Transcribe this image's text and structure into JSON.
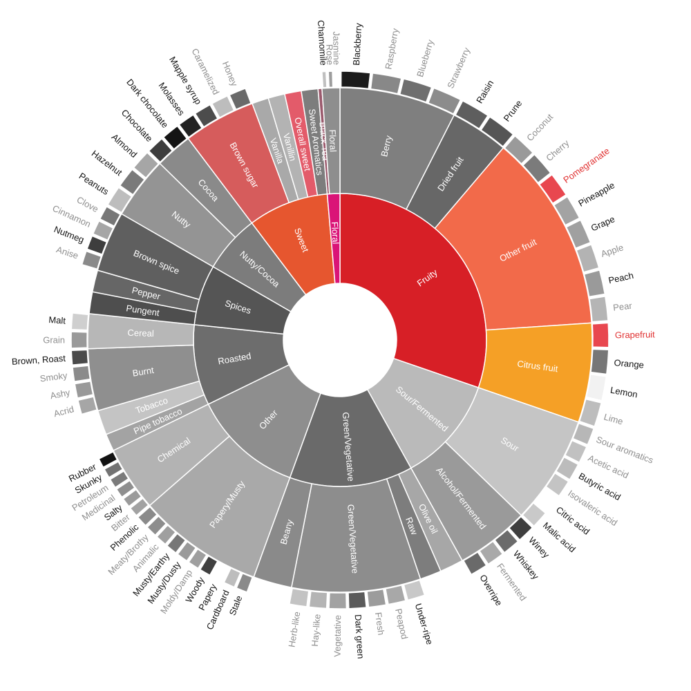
{
  "colors": {
    "fruity": "#d71f26",
    "floral": "#da1477",
    "sweet": "#e6562f",
    "other_fruit": "#f26a4a",
    "citrus": "#f5a026",
    "brown_sugar": "#d65c5c",
    "overall_sweet": "#e35b6a",
    "black_tea": "#9b5a6d",
    "red_text": "#e03131",
    "dark_text": "#111111",
    "muted_text": "#8e8e8e",
    "gray_mid": "#8a8a8a",
    "gray_dark": "#555555",
    "gray_darker": "#3a3a3a",
    "gray_light": "#b8b8b8",
    "gray_lighter": "#c8c8c8",
    "white": "#ffffff"
  },
  "wheel": {
    "categories": [
      {
        "name": "Fruity",
        "color": "#d71f26",
        "label_color": "#ffffff",
        "children": [
          {
            "name": "Berry",
            "color": "#7f7f7f",
            "children": [
              {
                "name": "Blackberry",
                "color": "#1c1c1c",
                "text": "dark"
              },
              {
                "name": "Raspberry",
                "color": "#888888",
                "text": "muted"
              },
              {
                "name": "Blueberry",
                "color": "#6f6f6f",
                "text": "muted"
              },
              {
                "name": "Strawberry",
                "color": "#8c8c8c",
                "text": "muted"
              }
            ]
          },
          {
            "name": "Dried fruit",
            "color": "#676767",
            "children": [
              {
                "name": "Raisin",
                "color": "#5e5e5e",
                "text": "dark"
              },
              {
                "name": "Prune",
                "color": "#555555",
                "text": "dark"
              }
            ]
          },
          {
            "name": "Other fruit",
            "color": "#f26a4a",
            "children": [
              {
                "name": "Coconut",
                "color": "#9a9a9a",
                "text": "muted"
              },
              {
                "name": "Cherry",
                "color": "#7b7b7b",
                "text": "muted"
              },
              {
                "name": "Pomegranate",
                "color": "#e8474f",
                "text": "red"
              },
              {
                "name": "Pineapple",
                "color": "#a3a3a3",
                "text": "dark"
              },
              {
                "name": "Grape",
                "color": "#a0a0a0",
                "text": "dark"
              },
              {
                "name": "Apple",
                "color": "#b3b3b3",
                "text": "muted"
              },
              {
                "name": "Peach",
                "color": "#9a9a9a",
                "text": "dark"
              },
              {
                "name": "Pear",
                "color": "#b5b5b5",
                "text": "muted"
              }
            ]
          },
          {
            "name": "Citrus fruit",
            "color": "#f5a026",
            "children": [
              {
                "name": "Grapefruit",
                "color": "#e8474f",
                "text": "red"
              },
              {
                "name": "Orange",
                "color": "#777777",
                "text": "dark"
              },
              {
                "name": "Lemon",
                "color": "#f2f2f2",
                "text": "dark"
              },
              {
                "name": "Lime",
                "color": "#bdbdbd",
                "text": "muted"
              }
            ]
          }
        ]
      },
      {
        "name": "Sour/Fermented",
        "color": "#bababa",
        "label_color": "#ffffff",
        "children": [
          {
            "name": "Sour",
            "color": "#c5c5c5",
            "children": [
              {
                "name": "Sour aromatics",
                "color": "#b7b7b7",
                "text": "muted"
              },
              {
                "name": "Acetic acid",
                "color": "#c1c1c1",
                "text": "muted"
              },
              {
                "name": "Butyric acid",
                "color": "#bcbcbc",
                "text": "dark"
              },
              {
                "name": "Isovaleric acid",
                "color": "#c4c4c4",
                "text": "muted"
              },
              {
                "name": "Citric acid",
                "color": "#ffffff",
                "text": "dark"
              },
              {
                "name": "Malic acid",
                "color": "#c9c9c9",
                "text": "dark"
              }
            ]
          },
          {
            "name": "Alcohol/Fermented",
            "color": "#9a9a9a",
            "children": [
              {
                "name": "Winey",
                "color": "#3f3f3f",
                "text": "dark"
              },
              {
                "name": "Whiskey",
                "color": "#6b6b6b",
                "text": "dark"
              },
              {
                "name": "Fermented",
                "color": "#a9a9a9",
                "text": "muted"
              },
              {
                "name": "Overripe",
                "color": "#6a6a6a",
                "text": "dark"
              }
            ]
          }
        ]
      },
      {
        "name": "Green/Vegetative",
        "color": "#6a6a6a",
        "label_color": "#ffffff",
        "children": [
          {
            "name": "Olive oil",
            "color": "#a7a7a7",
            "children": []
          },
          {
            "name": "Raw",
            "color": "#7d7d7d",
            "children": []
          },
          {
            "name": "Green/Vegetative",
            "color": "#8d8d8d",
            "children": [
              {
                "name": "Under-ripe",
                "color": "#c8c8c8",
                "text": "dark"
              },
              {
                "name": "Peapod",
                "color": "#a8a8a8",
                "text": "muted"
              },
              {
                "name": "Fresh",
                "color": "#9c9c9c",
                "text": "muted"
              },
              {
                "name": "Dark green",
                "color": "#5a5a5a",
                "text": "dark"
              },
              {
                "name": "Vegetative",
                "color": "#a2a2a2",
                "text": "muted"
              },
              {
                "name": "Hay-like",
                "color": "#b4b4b4",
                "text": "muted"
              },
              {
                "name": "Herb-like",
                "color": "#c3c3c3",
                "text": "muted"
              }
            ]
          },
          {
            "name": "Beany",
            "color": "#8a8a8a",
            "children": []
          }
        ]
      },
      {
        "name": "Other",
        "color": "#8e8e8e",
        "label_color": "#ffffff",
        "children": [
          {
            "name": "Papery/Musty",
            "color": "#a9a9a9",
            "children": [
              {
                "name": "Stale",
                "color": "#8a8a8a",
                "text": "dark"
              },
              {
                "name": "Cardboard",
                "color": "#bdbdbd",
                "text": "dark"
              },
              {
                "name": "Papery",
                "color": "#ffffff",
                "text": "dark"
              },
              {
                "name": "Woody",
                "color": "#404040",
                "text": "dark"
              },
              {
                "name": "Moldy/Damp",
                "color": "#9f9f9f",
                "text": "muted"
              },
              {
                "name": "Musty/Dusty",
                "color": "#9a9a9a",
                "text": "dark"
              },
              {
                "name": "Musty/Earthy",
                "color": "#777777",
                "text": "dark"
              },
              {
                "name": "Animalic",
                "color": "#9f9f9f",
                "text": "muted"
              },
              {
                "name": "Meaty/Brothy",
                "color": "#8d8d8d",
                "text": "muted"
              },
              {
                "name": "Phenolic",
                "color": "#8a8a8a",
                "text": "dark"
              }
            ]
          },
          {
            "name": "Chemical",
            "color": "#b3b3b3",
            "children": [
              {
                "name": "Bitter",
                "color": "#a2a2a2",
                "text": "muted"
              },
              {
                "name": "Salty",
                "color": "#9b9b9b",
                "text": "dark"
              },
              {
                "name": "Medicinal",
                "color": "#8f8f8f",
                "text": "muted"
              },
              {
                "name": "Petroleum",
                "color": "#7b7b7b",
                "text": "muted"
              },
              {
                "name": "Skunky",
                "color": "#737373",
                "text": "dark"
              },
              {
                "name": "Rubber",
                "color": "#121212",
                "text": "dark"
              }
            ]
          }
        ]
      },
      {
        "name": "Roasted",
        "color": "#6d6d6d",
        "label_color": "#ffffff",
        "children": [
          {
            "name": "Pipe tobacco",
            "color": "#a3a3a3",
            "children": []
          },
          {
            "name": "Tobacco",
            "color": "#c4c4c4",
            "children": []
          },
          {
            "name": "Burnt",
            "color": "#8f8f8f",
            "children": [
              {
                "name": "Acrid",
                "color": "#a6a6a6",
                "text": "muted"
              },
              {
                "name": "Ashy",
                "color": "#999999",
                "text": "muted"
              },
              {
                "name": "Smoky",
                "color": "#8b8b8b",
                "text": "muted"
              },
              {
                "name": "Brown, Roast",
                "color": "#4a4a4a",
                "text": "dark"
              }
            ]
          },
          {
            "name": "Cereal",
            "color": "#b7b7b7",
            "children": [
              {
                "name": "Grain",
                "color": "#9a9a9a",
                "text": "muted"
              },
              {
                "name": "Malt",
                "color": "#cfcfcf",
                "text": "dark"
              }
            ]
          }
        ]
      },
      {
        "name": "Spices",
        "color": "#555555",
        "label_color": "#ffffff",
        "children": [
          {
            "name": "Pungent",
            "color": "#4e4e4e",
            "children": []
          },
          {
            "name": "Pepper",
            "color": "#666666",
            "children": []
          },
          {
            "name": "Brown spice",
            "color": "#5f5f5f",
            "children": [
              {
                "name": "Anise",
                "color": "#8a8a8a",
                "text": "muted"
              },
              {
                "name": "Nutmeg",
                "color": "#3e3e3e",
                "text": "dark"
              },
              {
                "name": "Cinnamon",
                "color": "#a6a6a6",
                "text": "muted"
              },
              {
                "name": "Clove",
                "color": "#777777",
                "text": "muted"
              }
            ]
          }
        ]
      },
      {
        "name": "Nutty/Cocoa",
        "color": "#7c7c7c",
        "label_color": "#ffffff",
        "children": [
          {
            "name": "Nutty",
            "color": "#949494",
            "children": [
              {
                "name": "Peanuts",
                "color": "#bdbdbd",
                "text": "dark"
              },
              {
                "name": "Hazelnut",
                "color": "#7a7a7a",
                "text": "dark"
              },
              {
                "name": "Almond",
                "color": "#a6a6a6",
                "text": "dark"
              }
            ]
          },
          {
            "name": "Cocoa",
            "color": "#8a8a8a",
            "children": [
              {
                "name": "Chocolate",
                "color": "#3d3d3d",
                "text": "dark"
              },
              {
                "name": "Dark chocolate",
                "color": "#151515",
                "text": "dark"
              }
            ]
          }
        ]
      },
      {
        "name": "Sweet",
        "color": "#e6562f",
        "label_color": "#ffffff",
        "children": [
          {
            "name": "Brown sugar",
            "color": "#d65c5c",
            "children": [
              {
                "name": "Molasses",
                "color": "#222222",
                "text": "dark"
              },
              {
                "name": "Mapple syrup",
                "color": "#4c4c4c",
                "text": "dark"
              },
              {
                "name": "Caramelized",
                "color": "#bdbdbd",
                "text": "muted"
              },
              {
                "name": "Honey",
                "color": "#6a6a6a",
                "text": "muted"
              }
            ]
          },
          {
            "name": "Vanilla",
            "color": "#a9a9a9",
            "children": []
          },
          {
            "name": "Vanillin",
            "color": "#b3b3b3",
            "children": []
          },
          {
            "name": "Overall sweet",
            "color": "#e35b6a",
            "children": []
          },
          {
            "name": "Sweet Aromatics",
            "color": "#7d7d7d",
            "children": []
          }
        ]
      },
      {
        "name": "Floral",
        "color": "#da1477",
        "label_color": "#ffffff",
        "children": [
          {
            "name": "Black Tea",
            "color": "#9b5a6d",
            "children": []
          },
          {
            "name": "Floral",
            "color": "#8e8e8e",
            "children": [
              {
                "name": "Chamomile",
                "color": "#c0c0c0",
                "text": "dark"
              },
              {
                "name": "Rose",
                "color": "#9d9d9d",
                "text": "muted"
              },
              {
                "name": "Jasmine",
                "color": "#ffffff",
                "text": "muted"
              }
            ]
          }
        ]
      }
    ]
  }
}
